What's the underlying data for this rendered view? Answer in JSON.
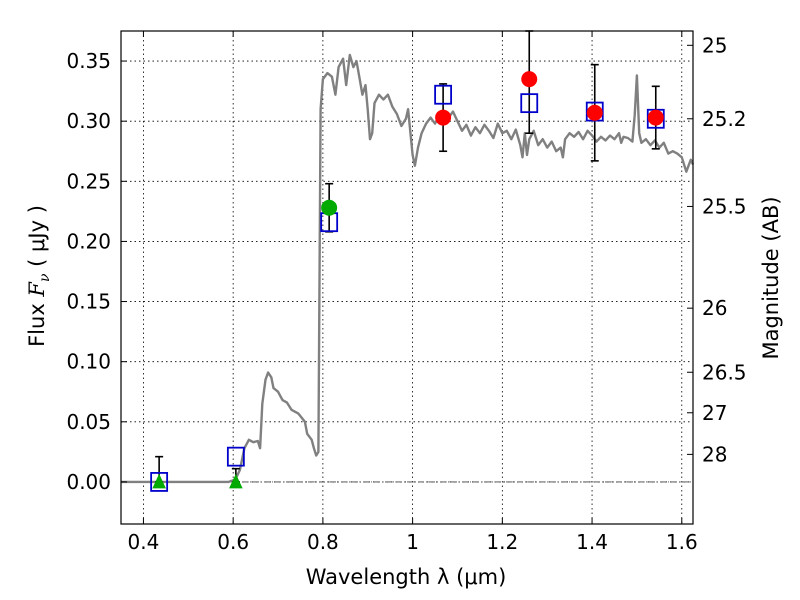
{
  "chart_data": {
    "type": "scatter",
    "xlabel": "Wavelength  λ (μm)",
    "ylabel": "Flux  F_ν  ( μJy )",
    "ylabel_parts": {
      "pre": "Flux  ",
      "f": "F",
      "nu": "ν",
      "post": "  ( μJy )"
    },
    "ylabel_right": "Magnitude (AB)",
    "xlim": [
      0.35,
      1.625
    ],
    "ylim": [
      -0.035,
      0.375
    ],
    "grid": true,
    "x_ticks": [
      0.4,
      0.6,
      0.8,
      1.0,
      1.2,
      1.4,
      1.6
    ],
    "x_tick_labels": [
      "0.4",
      "0.6",
      "0.8",
      "1",
      "1.2",
      "1.4",
      "1.6"
    ],
    "y_ticks": [
      0.0,
      0.05,
      0.1,
      0.15,
      0.2,
      0.25,
      0.3,
      0.35
    ],
    "y_tick_labels": [
      "0.00",
      "0.05",
      "0.10",
      "0.15",
      "0.20",
      "0.25",
      "0.30",
      "0.35"
    ],
    "right_ticks": [
      {
        "label": "25",
        "flux": 0.3631
      },
      {
        "label": "25.2",
        "flux": 0.302
      },
      {
        "label": "25.5",
        "flux": 0.2291
      },
      {
        "label": "26",
        "flux": 0.1445
      },
      {
        "label": "26.5",
        "flux": 0.0912
      },
      {
        "label": "27",
        "flux": 0.0575
      },
      {
        "label": "28",
        "flux": 0.0229
      }
    ],
    "zero_line": 0.0,
    "spectrum": {
      "color": "#808080",
      "points": [
        [
          0.35,
          0.0
        ],
        [
          0.59,
          0.0
        ],
        [
          0.605,
          0.002
        ],
        [
          0.615,
          0.01
        ],
        [
          0.625,
          0.028
        ],
        [
          0.635,
          0.035
        ],
        [
          0.645,
          0.033
        ],
        [
          0.655,
          0.034
        ],
        [
          0.66,
          0.028
        ],
        [
          0.665,
          0.065
        ],
        [
          0.672,
          0.085
        ],
        [
          0.678,
          0.091
        ],
        [
          0.685,
          0.087
        ],
        [
          0.69,
          0.078
        ],
        [
          0.7,
          0.075
        ],
        [
          0.71,
          0.068
        ],
        [
          0.72,
          0.066
        ],
        [
          0.73,
          0.06
        ],
        [
          0.745,
          0.057
        ],
        [
          0.76,
          0.05
        ],
        [
          0.765,
          0.04
        ],
        [
          0.775,
          0.035
        ],
        [
          0.78,
          0.028
        ],
        [
          0.785,
          0.022
        ],
        [
          0.79,
          0.025
        ],
        [
          0.795,
          0.31
        ],
        [
          0.8,
          0.335
        ],
        [
          0.81,
          0.34
        ],
        [
          0.82,
          0.337
        ],
        [
          0.828,
          0.322
        ],
        [
          0.835,
          0.345
        ],
        [
          0.845,
          0.352
        ],
        [
          0.852,
          0.33
        ],
        [
          0.86,
          0.355
        ],
        [
          0.868,
          0.345
        ],
        [
          0.875,
          0.35
        ],
        [
          0.882,
          0.335
        ],
        [
          0.888,
          0.322
        ],
        [
          0.895,
          0.33
        ],
        [
          0.9,
          0.31
        ],
        [
          0.905,
          0.285
        ],
        [
          0.91,
          0.29
        ],
        [
          0.915,
          0.315
        ],
        [
          0.925,
          0.322
        ],
        [
          0.935,
          0.318
        ],
        [
          0.945,
          0.322
        ],
        [
          0.955,
          0.312
        ],
        [
          0.965,
          0.306
        ],
        [
          0.975,
          0.296
        ],
        [
          0.985,
          0.302
        ],
        [
          0.99,
          0.31
        ],
        [
          1.0,
          0.272
        ],
        [
          1.005,
          0.263
        ],
        [
          1.012,
          0.278
        ],
        [
          1.02,
          0.29
        ],
        [
          1.03,
          0.298
        ],
        [
          1.04,
          0.303
        ],
        [
          1.05,
          0.298
        ],
        [
          1.06,
          0.305
        ],
        [
          1.07,
          0.3
        ],
        [
          1.08,
          0.303
        ],
        [
          1.09,
          0.308
        ],
        [
          1.1,
          0.3
        ],
        [
          1.11,
          0.292
        ],
        [
          1.12,
          0.297
        ],
        [
          1.13,
          0.288
        ],
        [
          1.14,
          0.295
        ],
        [
          1.15,
          0.29
        ],
        [
          1.16,
          0.297
        ],
        [
          1.17,
          0.292
        ],
        [
          1.18,
          0.286
        ],
        [
          1.19,
          0.298
        ],
        [
          1.2,
          0.29
        ],
        [
          1.21,
          0.292
        ],
        [
          1.22,
          0.285
        ],
        [
          1.23,
          0.293
        ],
        [
          1.24,
          0.28
        ],
        [
          1.245,
          0.27
        ],
        [
          1.25,
          0.29
        ],
        [
          1.255,
          0.272
        ],
        [
          1.26,
          0.285
        ],
        [
          1.27,
          0.292
        ],
        [
          1.28,
          0.28
        ],
        [
          1.29,
          0.285
        ],
        [
          1.3,
          0.278
        ],
        [
          1.31,
          0.283
        ],
        [
          1.32,
          0.275
        ],
        [
          1.33,
          0.278
        ],
        [
          1.335,
          0.27
        ],
        [
          1.34,
          0.285
        ],
        [
          1.35,
          0.29
        ],
        [
          1.36,
          0.287
        ],
        [
          1.37,
          0.291
        ],
        [
          1.38,
          0.285
        ],
        [
          1.39,
          0.292
        ],
        [
          1.4,
          0.288
        ],
        [
          1.41,
          0.283
        ],
        [
          1.42,
          0.287
        ],
        [
          1.43,
          0.284
        ],
        [
          1.44,
          0.288
        ],
        [
          1.45,
          0.285
        ],
        [
          1.46,
          0.29
        ],
        [
          1.465,
          0.282
        ],
        [
          1.47,
          0.287
        ],
        [
          1.48,
          0.286
        ],
        [
          1.49,
          0.283
        ],
        [
          1.495,
          0.305
        ],
        [
          1.5,
          0.338
        ],
        [
          1.505,
          0.29
        ],
        [
          1.51,
          0.282
        ],
        [
          1.52,
          0.285
        ],
        [
          1.53,
          0.28
        ],
        [
          1.54,
          0.284
        ],
        [
          1.55,
          0.278
        ],
        [
          1.56,
          0.282
        ],
        [
          1.57,
          0.273
        ],
        [
          1.58,
          0.275
        ],
        [
          1.59,
          0.273
        ],
        [
          1.6,
          0.27
        ],
        [
          1.61,
          0.258
        ],
        [
          1.62,
          0.268
        ],
        [
          1.625,
          0.264
        ]
      ]
    },
    "series": [
      {
        "marker": "square",
        "color": "#0000cc",
        "points": [
          {
            "x": 0.435,
            "y": 0.0
          },
          {
            "x": 0.606,
            "y": 0.021
          },
          {
            "x": 0.814,
            "y": 0.216
          },
          {
            "x": 1.068,
            "y": 0.322
          },
          {
            "x": 1.26,
            "y": 0.315
          },
          {
            "x": 1.406,
            "y": 0.308
          },
          {
            "x": 1.542,
            "y": 0.302
          }
        ]
      },
      {
        "marker": "circle",
        "color": "#ff0000",
        "points": [
          {
            "x": 1.068,
            "y": 0.303,
            "err": 0.028
          },
          {
            "x": 1.26,
            "y": 0.335,
            "err": 0.045
          },
          {
            "x": 1.406,
            "y": 0.307,
            "err": 0.04
          },
          {
            "x": 1.542,
            "y": 0.303,
            "err": 0.026
          }
        ]
      },
      {
        "marker": "circle",
        "color": "#00aa00",
        "points": [
          {
            "x": 0.814,
            "y": 0.228,
            "err": 0.02
          }
        ]
      },
      {
        "marker": "triangle",
        "color": "#00aa00",
        "points": [
          {
            "x": 0.435,
            "y": 0.0,
            "err_up": 0.021
          },
          {
            "x": 0.606,
            "y": 0.0,
            "err_up": 0.011
          }
        ]
      }
    ]
  }
}
